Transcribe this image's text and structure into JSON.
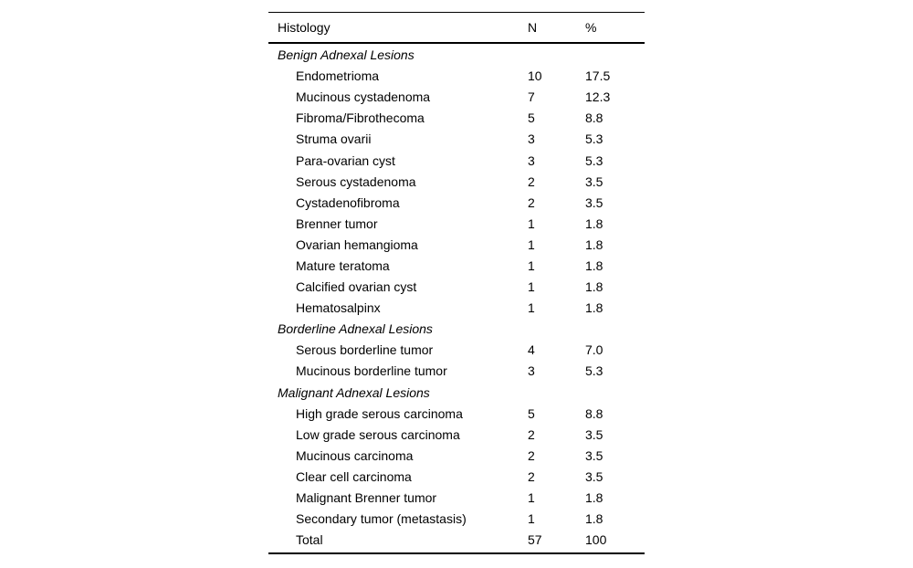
{
  "table": {
    "columns": {
      "histology": "Histology",
      "n": "N",
      "pct": "%"
    },
    "rows": [
      {
        "type": "section",
        "label": "Benign Adnexal Lesions",
        "n": "",
        "pct": ""
      },
      {
        "type": "item",
        "label": "Endometrioma",
        "n": "10",
        "pct": "17.5"
      },
      {
        "type": "item",
        "label": "Mucinous cystadenoma",
        "n": "7",
        "pct": "12.3"
      },
      {
        "type": "item",
        "label": "Fibroma/Fibrothecoma",
        "n": "5",
        "pct": "8.8"
      },
      {
        "type": "item",
        "label": "Struma ovarii",
        "n": "3",
        "pct": "5.3"
      },
      {
        "type": "item",
        "label": "Para-ovarian cyst",
        "n": "3",
        "pct": "5.3"
      },
      {
        "type": "item",
        "label": "Serous cystadenoma",
        "n": "2",
        "pct": "3.5"
      },
      {
        "type": "item",
        "label": "Cystadenofibroma",
        "n": "2",
        "pct": "3.5"
      },
      {
        "type": "item",
        "label": "Brenner tumor",
        "n": "1",
        "pct": "1.8"
      },
      {
        "type": "item",
        "label": "Ovarian hemangioma",
        "n": "1",
        "pct": "1.8"
      },
      {
        "type": "item",
        "label": "Mature teratoma",
        "n": "1",
        "pct": "1.8"
      },
      {
        "type": "item",
        "label": "Calcified ovarian cyst",
        "n": "1",
        "pct": "1.8"
      },
      {
        "type": "item",
        "label": "Hematosalpinx",
        "n": "1",
        "pct": "1.8"
      },
      {
        "type": "section",
        "label": "Borderline Adnexal Lesions",
        "n": "",
        "pct": ""
      },
      {
        "type": "item",
        "label": "Serous borderline tumor",
        "n": "4",
        "pct": "7.0"
      },
      {
        "type": "item",
        "label": "Mucinous borderline tumor",
        "n": "3",
        "pct": "5.3"
      },
      {
        "type": "section",
        "label": "Malignant Adnexal Lesions",
        "n": "",
        "pct": ""
      },
      {
        "type": "item",
        "label": "High grade serous carcinoma",
        "n": "5",
        "pct": "8.8"
      },
      {
        "type": "item",
        "label": "Low grade serous carcinoma",
        "n": "2",
        "pct": "3.5"
      },
      {
        "type": "item",
        "label": "Mucinous carcinoma",
        "n": "2",
        "pct": "3.5"
      },
      {
        "type": "item",
        "label": "Clear cell carcinoma",
        "n": "2",
        "pct": "3.5"
      },
      {
        "type": "item",
        "label": "Malignant Brenner tumor",
        "n": "1",
        "pct": "1.8"
      },
      {
        "type": "item",
        "label": "Secondary tumor (metastasis)",
        "n": "1",
        "pct": "1.8"
      },
      {
        "type": "item",
        "label": "Total",
        "n": "57",
        "pct": "100"
      }
    ]
  }
}
